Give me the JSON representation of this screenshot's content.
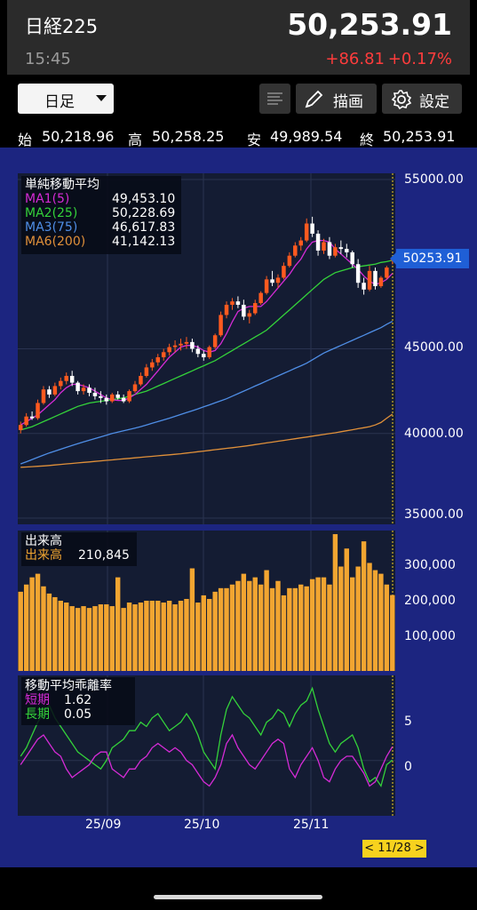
{
  "header": {
    "title": "日経225",
    "price": "50,253.91",
    "time": "15:45",
    "change": "+86.81",
    "change_pct": "+0.17%"
  },
  "toolbar": {
    "period": "日足",
    "draw_label": "描画",
    "settings_label": "設定"
  },
  "ohlc": {
    "open_label": "始",
    "open": "50,218.96",
    "high_label": "高",
    "high": "50,258.25",
    "low_label": "安",
    "low": "49,989.54",
    "close_label": "終",
    "close": "50,253.91"
  },
  "colors": {
    "up": "#ff5a1f",
    "down": "#ffffff",
    "ma1": "#d52bd6",
    "ma2": "#34d23a",
    "ma3": "#4f8ee6",
    "ma6": "#e0903a",
    "volume": "#f2a531",
    "short": "#d52bd6",
    "long": "#34d23a",
    "tag": "#1f5fd6",
    "date_tag": "#f7d21e"
  },
  "price_panel": {
    "legend_title": "単純移動平均",
    "ma": [
      {
        "name": "MA1(5)",
        "value": "49,453.10"
      },
      {
        "name": "MA2(25)",
        "value": "50,228.69"
      },
      {
        "name": "MA3(75)",
        "value": "46,617.83"
      },
      {
        "name": "MA6(200)",
        "value": "41,142.13"
      }
    ],
    "y_ticks": [
      "55000.00",
      "45000.00",
      "40000.00",
      "35000.00"
    ],
    "last_price_tag": "50253.91"
  },
  "volume_panel": {
    "legend_title": "出来高",
    "legend_name": "出来高",
    "legend_value": "210,845",
    "y_ticks": [
      "300,000",
      "200,000",
      "100,000"
    ]
  },
  "osc_panel": {
    "legend_title": "移動平均乖離率",
    "short_label": "短期",
    "short_value": "1.62",
    "long_label": "長期",
    "long_value": "0.05",
    "y_ticks": [
      "5",
      "0"
    ]
  },
  "x_ticks": [
    "25/09",
    "25/10",
    "25/11"
  ],
  "date_tag": "< 11/28 >",
  "chart_data": {
    "type": "candlestick",
    "x_range": [
      "2025-08-01",
      "2025-11-28"
    ],
    "ylim": [
      35000,
      55000
    ],
    "candles": [
      [
        40200,
        40700,
        40000,
        40500
      ],
      [
        40500,
        41200,
        40400,
        41000
      ],
      [
        41000,
        41300,
        40800,
        40900
      ],
      [
        40900,
        42000,
        40800,
        41800
      ],
      [
        41800,
        42800,
        41700,
        42600
      ],
      [
        42600,
        42800,
        42100,
        42300
      ],
      [
        42300,
        43000,
        42200,
        42800
      ],
      [
        42800,
        43300,
        42600,
        43100
      ],
      [
        43100,
        43600,
        42900,
        43400
      ],
      [
        43400,
        43700,
        42800,
        43000
      ],
      [
        43000,
        43100,
        42300,
        42500
      ],
      [
        42500,
        42900,
        42300,
        42700
      ],
      [
        42700,
        42900,
        42200,
        42400
      ],
      [
        42400,
        42700,
        42000,
        42200
      ],
      [
        42200,
        42500,
        41800,
        42100
      ],
      [
        42100,
        42300,
        41700,
        41900
      ],
      [
        41900,
        42400,
        41800,
        42300
      ],
      [
        42300,
        42500,
        42000,
        42100
      ],
      [
        42100,
        42300,
        41800,
        41900
      ],
      [
        41900,
        42600,
        41800,
        42500
      ],
      [
        42500,
        43100,
        42400,
        42900
      ],
      [
        42900,
        43600,
        42800,
        43400
      ],
      [
        43400,
        44100,
        43300,
        43900
      ],
      [
        43900,
        44400,
        43700,
        44200
      ],
      [
        44200,
        44700,
        44000,
        44500
      ],
      [
        44500,
        45000,
        44300,
        44800
      ],
      [
        44800,
        45300,
        44600,
        45100
      ],
      [
        45100,
        45500,
        44800,
        45200
      ],
      [
        45200,
        45600,
        44900,
        45300
      ],
      [
        45300,
        45700,
        45000,
        45400
      ],
      [
        45400,
        45600,
        44800,
        45000
      ],
      [
        45000,
        45200,
        44500,
        44700
      ],
      [
        44700,
        44900,
        44300,
        44500
      ],
      [
        44500,
        45200,
        44400,
        45100
      ],
      [
        45100,
        45900,
        45000,
        45800
      ],
      [
        45800,
        47200,
        45700,
        47000
      ],
      [
        47000,
        47800,
        46800,
        47600
      ],
      [
        47600,
        48000,
        47300,
        47800
      ],
      [
        47800,
        48100,
        47400,
        47600
      ],
      [
        47600,
        47900,
        46700,
        46900
      ],
      [
        46900,
        47300,
        46500,
        47100
      ],
      [
        47100,
        47900,
        47000,
        47700
      ],
      [
        47700,
        48400,
        47600,
        48300
      ],
      [
        48300,
        49300,
        48200,
        49100
      ],
      [
        49100,
        49600,
        48700,
        48900
      ],
      [
        48900,
        49400,
        48600,
        49200
      ],
      [
        49200,
        50100,
        49100,
        49900
      ],
      [
        49900,
        50700,
        49800,
        50500
      ],
      [
        50500,
        51300,
        50400,
        51100
      ],
      [
        51100,
        51600,
        50800,
        51400
      ],
      [
        51400,
        52700,
        51300,
        52400
      ],
      [
        52400,
        52800,
        51600,
        51800
      ],
      [
        51800,
        52000,
        50500,
        50800
      ],
      [
        50800,
        51500,
        50600,
        51300
      ],
      [
        51300,
        51600,
        50300,
        50500
      ],
      [
        50500,
        51200,
        50400,
        51000
      ],
      [
        51000,
        51400,
        50600,
        50900
      ],
      [
        50900,
        51200,
        50400,
        50700
      ],
      [
        50700,
        50800,
        49800,
        50000
      ],
      [
        50000,
        50300,
        48600,
        48900
      ],
      [
        48900,
        49200,
        48200,
        48500
      ],
      [
        48500,
        49900,
        48400,
        49600
      ],
      [
        49600,
        49800,
        48500,
        48700
      ],
      [
        48700,
        49300,
        48600,
        49200
      ],
      [
        49200,
        49900,
        49100,
        49800
      ],
      [
        50219,
        50258,
        49990,
        50254
      ]
    ],
    "ma1_5": [
      40500,
      40700,
      40900,
      41100,
      41400,
      41700,
      42000,
      42400,
      42700,
      42900,
      42900,
      42800,
      42700,
      42500,
      42300,
      42100,
      42000,
      41950,
      41950,
      42100,
      42300,
      42600,
      42900,
      43300,
      43700,
      44100,
      44500,
      44800,
      45100,
      45200,
      45200,
      45100,
      44900,
      44800,
      44900,
      45300,
      45900,
      46600,
      47200,
      47400,
      47500,
      47500,
      47500,
      47800,
      48200,
      48600,
      49000,
      49400,
      49900,
      50300,
      50900,
      51300,
      51400,
      51400,
      51300,
      50900,
      50600,
      50300,
      50000,
      49700,
      49300,
      49000,
      48800,
      48900,
      49100,
      49450
    ],
    "ma2_25": [
      40200,
      40300,
      40400,
      40550,
      40700,
      40850,
      41000,
      41150,
      41300,
      41450,
      41600,
      41700,
      41800,
      41850,
      41900,
      41950,
      42000,
      42050,
      42100,
      42200,
      42300,
      42400,
      42500,
      42650,
      42800,
      42950,
      43100,
      43250,
      43400,
      43550,
      43700,
      43850,
      44000,
      44150,
      44300,
      44500,
      44700,
      44900,
      45100,
      45300,
      45500,
      45700,
      45900,
      46100,
      46400,
      46700,
      47000,
      47300,
      47600,
      47900,
      48200,
      48500,
      48800,
      49100,
      49300,
      49500,
      49600,
      49700,
      49800,
      49850,
      49900,
      49950,
      50000,
      50100,
      50150,
      50230
    ],
    "ma3_75": [
      38200,
      38330,
      38460,
      38590,
      38720,
      38850,
      38960,
      39070,
      39180,
      39290,
      39400,
      39500,
      39600,
      39700,
      39800,
      39900,
      40000,
      40080,
      40160,
      40240,
      40320,
      40400,
      40500,
      40600,
      40700,
      40800,
      40900,
      41010,
      41120,
      41230,
      41340,
      41450,
      41570,
      41690,
      41810,
      41930,
      42050,
      42200,
      42350,
      42500,
      42650,
      42800,
      42950,
      43100,
      43250,
      43400,
      43550,
      43700,
      43850,
      44000,
      44150,
      44350,
      44550,
      44750,
      44900,
      45050,
      45200,
      45350,
      45500,
      45650,
      45800,
      45950,
      46100,
      46250,
      46450,
      46620
    ],
    "ma6_200": [
      38000,
      38020,
      38040,
      38060,
      38080,
      38110,
      38140,
      38170,
      38200,
      38230,
      38260,
      38290,
      38320,
      38350,
      38380,
      38410,
      38440,
      38470,
      38500,
      38530,
      38560,
      38590,
      38620,
      38650,
      38680,
      38710,
      38740,
      38770,
      38800,
      38840,
      38880,
      38920,
      38960,
      39000,
      39040,
      39080,
      39120,
      39160,
      39200,
      39240,
      39290,
      39340,
      39390,
      39440,
      39490,
      39540,
      39590,
      39640,
      39690,
      39740,
      39790,
      39840,
      39890,
      39940,
      39990,
      40040,
      40100,
      40160,
      40220,
      40280,
      40340,
      40400,
      40500,
      40650,
      40900,
      41142
    ],
    "volume": [
      220000,
      240000,
      260000,
      270000,
      235000,
      215000,
      205000,
      195000,
      190000,
      180000,
      175000,
      180000,
      175000,
      180000,
      185000,
      185000,
      180000,
      260000,
      175000,
      190000,
      185000,
      190000,
      195000,
      195000,
      195000,
      190000,
      195000,
      185000,
      195000,
      200000,
      285000,
      190000,
      210000,
      200000,
      220000,
      230000,
      230000,
      240000,
      250000,
      270000,
      250000,
      260000,
      240000,
      280000,
      230000,
      250000,
      210000,
      230000,
      230000,
      240000,
      235000,
      255000,
      260000,
      260000,
      240000,
      380000,
      290000,
      340000,
      260000,
      290000,
      360000,
      300000,
      280000,
      270000,
      240000,
      210845
    ],
    "short_dev": [
      -0.5,
      0.5,
      1.5,
      2.5,
      3,
      2,
      1,
      0.5,
      -1,
      -2,
      -1.5,
      -1,
      -0.5,
      0.5,
      1,
      1,
      -1,
      -1.5,
      -2,
      -1,
      -1,
      0,
      0.5,
      1.5,
      2,
      1.5,
      1,
      1.5,
      1,
      0,
      -0.5,
      -1.5,
      -2.5,
      -3,
      -2,
      -0.5,
      2,
      3,
      1.5,
      0.5,
      -0.5,
      -1,
      0,
      1,
      2,
      2.5,
      2,
      -1,
      -2,
      -0.5,
      0.5,
      1.5,
      0,
      -2,
      -2.5,
      -1,
      0,
      0.5,
      0.5,
      -0.5,
      -1.5,
      -3,
      -2.5,
      -1,
      0.5,
      1.62
    ],
    "long_dev": [
      0.5,
      1.5,
      3,
      4.5,
      5.5,
      6.5,
      5,
      4,
      3,
      2,
      1,
      0.5,
      0,
      -0.5,
      -1,
      0,
      1.5,
      2,
      2.5,
      3.5,
      3.5,
      4.5,
      4,
      5,
      5.5,
      4.5,
      3.5,
      4,
      4.5,
      5.5,
      4.5,
      3,
      1,
      0,
      -1,
      3,
      6,
      7.5,
      6.5,
      5.5,
      5,
      4,
      3,
      4.5,
      5,
      6,
      5.5,
      4,
      5.5,
      6.5,
      7,
      8.5,
      6,
      4,
      2,
      1,
      2,
      2.5,
      3,
      1.5,
      -1,
      -2.5,
      -2,
      -3,
      -0.5,
      0.05
    ]
  }
}
